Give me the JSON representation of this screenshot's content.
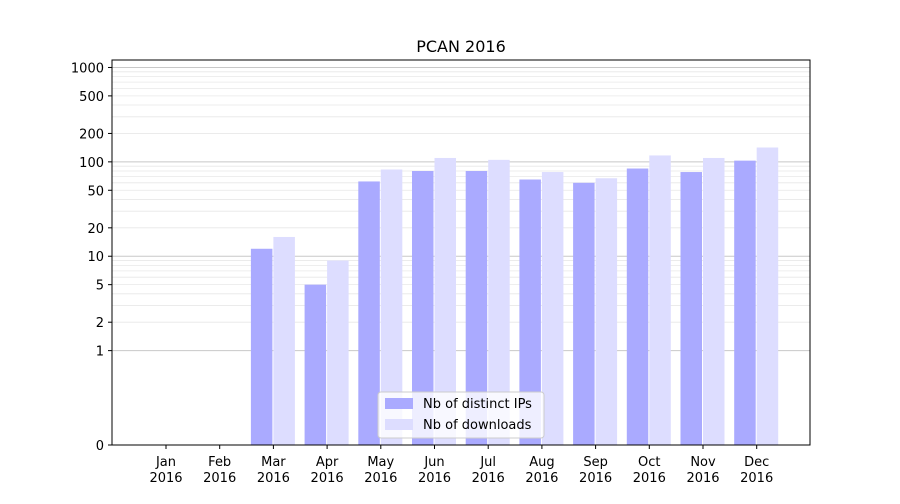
{
  "chart_data": {
    "type": "bar",
    "title": "PCAN 2016",
    "xlabel": "",
    "ylabel": "",
    "yscale": "symlog",
    "ylim": [
      0,
      1200
    ],
    "grid": "horizontal",
    "legend_position": "bottom-center",
    "categories": [
      [
        "Jan",
        "2016"
      ],
      [
        "Feb",
        "2016"
      ],
      [
        "Mar",
        "2016"
      ],
      [
        "Apr",
        "2016"
      ],
      [
        "May",
        "2016"
      ],
      [
        "Jun",
        "2016"
      ],
      [
        "Jul",
        "2016"
      ],
      [
        "Aug",
        "2016"
      ],
      [
        "Sep",
        "2016"
      ],
      [
        "Oct",
        "2016"
      ],
      [
        "Nov",
        "2016"
      ],
      [
        "Dec",
        "2016"
      ]
    ],
    "y_ticks": [
      0,
      1,
      2,
      5,
      10,
      20,
      50,
      100,
      200,
      500,
      1000
    ],
    "y_tick_labels": [
      "0",
      "1",
      "2",
      "5",
      "10",
      "20",
      "50",
      "100",
      "200",
      "500",
      "1000"
    ],
    "series": [
      {
        "name": "Nb of distinct IPs",
        "color": "#aaaaff",
        "values": [
          0,
          0,
          12,
          5,
          62,
          80,
          80,
          65,
          60,
          85,
          78,
          103
        ]
      },
      {
        "name": "Nb of downloads",
        "color": "#ddddff",
        "values": [
          0,
          0,
          16,
          9,
          83,
          110,
          105,
          78,
          67,
          117,
          110,
          142
        ]
      }
    ]
  }
}
